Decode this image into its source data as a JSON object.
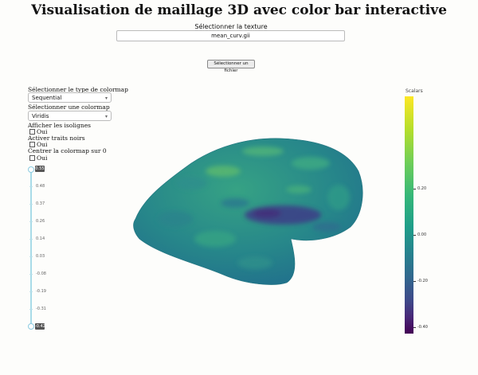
{
  "header": {
    "title": "Visualisation de maillage 3D avec color bar interactive"
  },
  "texture": {
    "label": "Sélectionner la texture",
    "selected": "mean_curv.gii"
  },
  "file_button": {
    "label": "Sélectionner un fichier"
  },
  "controls": {
    "colormap_type_label": "Sélectionner le type de colormap",
    "colormap_type_value": "Sequential",
    "colormap_label": "Sélectionner une colormap",
    "colormap_value": "Viridis",
    "isolines_label": "Afficher les isolignes",
    "isolines_option": "Oui",
    "black_lines_label": "Activer traits noirs",
    "black_lines_option": "Oui",
    "center_label": "Centrer la colormap sur 0",
    "center_option": "Oui"
  },
  "slider": {
    "max_value": "0.55",
    "min_value": "-0.42",
    "ticks": [
      "0.48",
      "0.37",
      "0.26",
      "0.14",
      "0.03",
      "-0.08",
      "-0.19",
      "-0.31"
    ]
  },
  "colorbar": {
    "title": "Scalars",
    "colorscale": "Viridis",
    "ticks": [
      "0.20",
      "0.00",
      "-0.20",
      "-0.40"
    ]
  },
  "colors": {
    "track": "#a8dbe8",
    "mesh_base": "#2a8a84"
  }
}
